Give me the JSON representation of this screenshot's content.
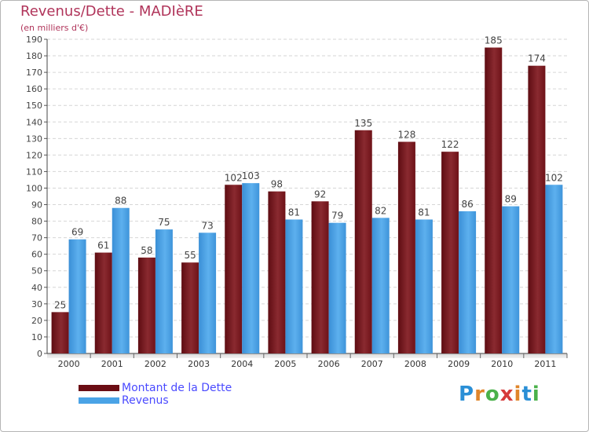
{
  "chart_data": {
    "type": "bar",
    "title": "Revenus/Dette - MADIèRE",
    "subtitle": "(en milliers d'€)",
    "xlabel": "",
    "ylabel": "",
    "ylim": [
      0,
      190
    ],
    "ytick_step": 10,
    "grid": true,
    "legend_position": "bottom-left",
    "categories": [
      "2000",
      "2001",
      "2002",
      "2003",
      "2004",
      "2005",
      "2006",
      "2007",
      "2008",
      "2009",
      "2010",
      "2011"
    ],
    "series": [
      {
        "name": "Montant de la Dette",
        "color": "#7a1a22",
        "values": [
          25,
          61,
          58,
          55,
          102,
          98,
          92,
          135,
          128,
          122,
          185,
          174
        ]
      },
      {
        "name": "Revenus",
        "color": "#4aa3e6",
        "values": [
          69,
          88,
          75,
          73,
          103,
          81,
          79,
          82,
          81,
          86,
          89,
          102
        ]
      }
    ]
  },
  "legend": {
    "debt_label": "Montant de la Dette",
    "revenue_label": "Revenus",
    "debt_color": "#6b0d14",
    "revenue_color": "#4aa3e6"
  },
  "logo": {
    "text": "Proxiti",
    "letter_colors": [
      "#2a8fd6",
      "#e0852a",
      "#4ab14a",
      "#d63a3a",
      "#e0852a",
      "#2a8fd6",
      "#4ab14a"
    ]
  }
}
